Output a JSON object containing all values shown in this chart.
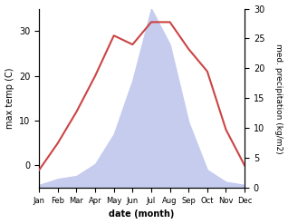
{
  "months": [
    "Jan",
    "Feb",
    "Mar",
    "Apr",
    "May",
    "Jun",
    "Jul",
    "Aug",
    "Sep",
    "Oct",
    "Nov",
    "Dec"
  ],
  "month_indices": [
    1,
    2,
    3,
    4,
    5,
    6,
    7,
    8,
    9,
    10,
    11,
    12
  ],
  "temperature": [
    -1,
    5,
    12,
    20,
    29,
    27,
    32,
    32,
    26,
    21,
    8,
    0
  ],
  "precipitation": [
    0.5,
    1.5,
    2,
    4,
    9,
    18,
    30,
    24,
    11,
    3,
    1,
    0.5
  ],
  "temp_color": "#cc4444",
  "precip_fill_color": "#c5ccee",
  "temp_ylim": [
    -5,
    35
  ],
  "precip_ylim": [
    0,
    30
  ],
  "left_yticks": [
    0,
    10,
    20,
    30
  ],
  "right_yticks": [
    0,
    5,
    10,
    15,
    20,
    25,
    30
  ],
  "xlabel": "date (month)",
  "ylabel_left": "max temp (C)",
  "ylabel_right": "med. precipitation (kg/m2)"
}
